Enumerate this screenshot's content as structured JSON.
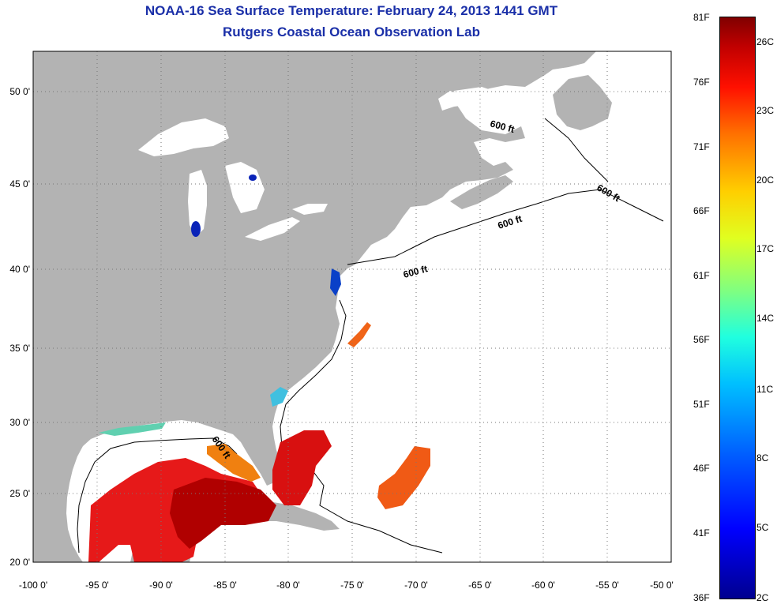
{
  "title": {
    "line1": "NOAA-16 Sea Surface Temperature:  February 24, 2013 1441 GMT",
    "line2": "Rutgers Coastal Ocean Observation Lab"
  },
  "map": {
    "lon_ticks": [
      "-100 0'",
      "-95 0'",
      "-90 0'",
      "-85 0'",
      "-80 0'",
      "-75 0'",
      "-70 0'",
      "-65 0'",
      "-60 0'",
      "-55 0'",
      "-50 0'"
    ],
    "lat_ticks": [
      "50 0'",
      "45 0'",
      "40 0'",
      "35 0'",
      "30 0'",
      "25 0'",
      "20 0'"
    ],
    "contour_labels": [
      "600 ft",
      "600 ft",
      "600 ft",
      "600 ft",
      "600 ft"
    ],
    "land_color": "#b3b3b3",
    "ocean_color": "#ffffff",
    "grid_style": "dotted"
  },
  "colorbar": {
    "fahrenheit": [
      "81F",
      "76F",
      "71F",
      "66F",
      "61F",
      "56F",
      "51F",
      "46F",
      "41F",
      "36F"
    ],
    "celsius": [
      "26C",
      "23C",
      "20C",
      "17C",
      "14C",
      "11C",
      "8C",
      "5C",
      "2C"
    ]
  }
}
